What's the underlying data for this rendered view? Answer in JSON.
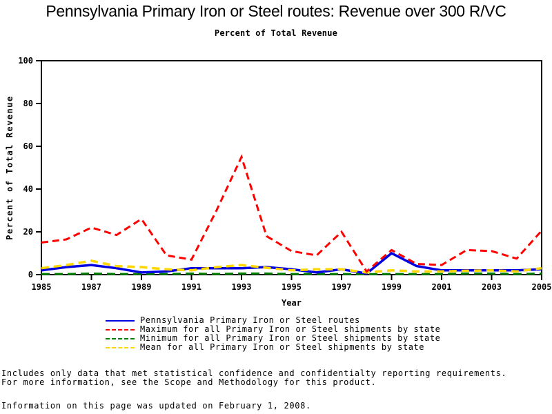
{
  "title": "Pennsylvania Primary Iron or Steel routes: Revenue over 300 R/VC",
  "subtitle": "Percent of Total Revenue",
  "chart_data": {
    "type": "line",
    "title": "Pennsylvania Primary Iron or Steel routes: Revenue over 300 R/VC",
    "subtitle": "Percent of Total Revenue",
    "xlabel": "Year",
    "ylabel": "Percent of Total Revenue",
    "x": [
      1985,
      1986,
      1987,
      1988,
      1989,
      1990,
      1991,
      1992,
      1993,
      1994,
      1995,
      1996,
      1997,
      1998,
      1999,
      2000,
      2001,
      2002,
      2003,
      2004,
      2005
    ],
    "xticks": [
      1985,
      1987,
      1989,
      1991,
      1993,
      1995,
      1997,
      1999,
      2001,
      2003,
      2005
    ],
    "yticks": [
      0,
      20,
      40,
      60,
      80,
      100
    ],
    "ylim": [
      0,
      100
    ],
    "grid": false,
    "legend_position": "bottom",
    "frame": true,
    "series": [
      {
        "name": "Pennsylvania Primary Iron or Steel routes",
        "color": "#0000e0",
        "style": "solid",
        "values": [
          2,
          3.5,
          4.5,
          3,
          1,
          1.5,
          3,
          3,
          3,
          3.5,
          2.5,
          1,
          2.5,
          0.5,
          10,
          4,
          2,
          2,
          2,
          2,
          2.5
        ]
      },
      {
        "name": "Maximum for all Primary Iron or Steel shipments by state",
        "color": "#ff0000",
        "style": "dashed",
        "values": [
          15,
          16.5,
          22,
          18.5,
          26,
          9,
          7,
          30,
          55,
          18,
          11,
          9,
          20,
          1.5,
          11.5,
          5,
          4.5,
          11.5,
          11,
          7.5,
          20.5
        ]
      },
      {
        "name": "Minimum for all Primary Iron or Steel shipments by state",
        "color": "#008000",
        "style": "dashed",
        "values": [
          0.3,
          0.3,
          0.5,
          0.3,
          0.3,
          0.3,
          0.5,
          0.3,
          0.5,
          0.5,
          0.3,
          0.3,
          0.3,
          0.2,
          0.3,
          0.3,
          0.3,
          0.5,
          0.5,
          0.3,
          0.5
        ]
      },
      {
        "name": "Mean for all Primary Iron or Steel shipments by state",
        "color": "#ffd700",
        "style": "dashed",
        "values": [
          3,
          4.5,
          6.5,
          4,
          3.5,
          2.5,
          2,
          3.5,
          4.5,
          3.2,
          2,
          2.5,
          2.5,
          1,
          2,
          1.5,
          1.5,
          1.8,
          2,
          1.5,
          3
        ]
      }
    ]
  },
  "footnotes": [
    "Includes only data that met statistical confidence and confidentialty reporting requirements.",
    "For more information, see the Scope and Methodology for this product.",
    "Information on this page was updated on February 1, 2008."
  ]
}
